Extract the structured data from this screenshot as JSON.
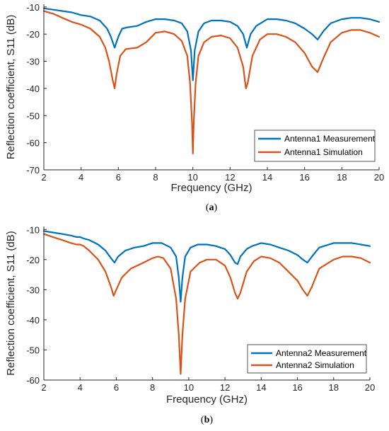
{
  "chart_data": [
    {
      "type": "line",
      "caption_open": "(",
      "caption_letter": "a",
      "caption_close": ")",
      "xlabel": "Frequency (GHz)",
      "ylabel": "Reflection coefficient, S11 (dB)",
      "xlim": [
        2,
        20
      ],
      "ylim": [
        -70,
        -9
      ],
      "xticks": [
        2,
        4,
        6,
        8,
        10,
        12,
        14,
        16,
        18,
        20
      ],
      "yticks": [
        -70,
        -60,
        -50,
        -40,
        -30,
        -20,
        -10
      ],
      "legend_position": "bottom-right",
      "series": [
        {
          "name": "Antenna1 Measurement",
          "color": "#0072BD",
          "x": [
            2,
            2.5,
            3,
            3.5,
            4,
            4.5,
            5,
            5.4,
            5.6,
            5.8,
            6.0,
            6.2,
            6.5,
            7,
            7.5,
            8,
            8.5,
            9,
            9.4,
            9.7,
            9.9,
            10.0,
            10.1,
            10.3,
            10.6,
            11,
            11.5,
            12,
            12.4,
            12.7,
            12.9,
            13.1,
            13.4,
            14,
            14.5,
            15,
            15.5,
            16,
            16.4,
            16.7,
            17.0,
            17.4,
            18,
            18.5,
            19,
            19.5,
            20
          ],
          "y": [
            -10.5,
            -11,
            -11.5,
            -12,
            -13,
            -13.5,
            -15,
            -18,
            -21,
            -25,
            -21,
            -18,
            -17.5,
            -17,
            -15.5,
            -14.5,
            -14.5,
            -15,
            -16,
            -19,
            -26,
            -37,
            -26,
            -19,
            -16,
            -15,
            -15,
            -15.5,
            -17,
            -20,
            -25,
            -20,
            -17,
            -14.5,
            -14.5,
            -15,
            -16,
            -18,
            -20,
            -22,
            -19,
            -16,
            -14.5,
            -14,
            -14,
            -14.5,
            -15.5
          ]
        },
        {
          "name": "Antenna1 Simulation",
          "color": "#D95319",
          "x": [
            2,
            2.5,
            3,
            3.5,
            4,
            4.5,
            5,
            5.3,
            5.5,
            5.7,
            5.8,
            5.9,
            6.1,
            6.4,
            7,
            7.5,
            8,
            8.5,
            9,
            9.4,
            9.7,
            9.85,
            9.95,
            10.0,
            10.05,
            10.15,
            10.3,
            10.6,
            11,
            11.5,
            12,
            12.4,
            12.7,
            12.85,
            12.95,
            13.2,
            13.6,
            14,
            14.5,
            15,
            15.5,
            16,
            16.4,
            16.7,
            17.0,
            17.4,
            18,
            18.5,
            19,
            19.5,
            20
          ],
          "y": [
            -11.5,
            -12.5,
            -14,
            -15.5,
            -16.5,
            -18,
            -21,
            -25,
            -30,
            -37,
            -40,
            -35,
            -28,
            -25.5,
            -25,
            -23,
            -19.5,
            -19,
            -20,
            -22.5,
            -28,
            -38,
            -52,
            -64,
            -52,
            -38,
            -28,
            -23,
            -21,
            -20.5,
            -21.5,
            -25,
            -32,
            -40,
            -38,
            -28,
            -22,
            -20,
            -20,
            -21,
            -23,
            -27,
            -32,
            -34,
            -29,
            -23,
            -19.5,
            -18.5,
            -18.5,
            -19.5,
            -21
          ]
        }
      ]
    },
    {
      "type": "line",
      "caption_open": "(",
      "caption_letter": "b",
      "caption_close": ")",
      "xlabel": "Frequency (GHz)",
      "ylabel": "Reflection coefficient, S11 (dB)",
      "xlim": [
        2,
        20
      ],
      "ylim": [
        -60,
        -9
      ],
      "xticks": [
        2,
        4,
        6,
        8,
        10,
        12,
        14,
        16,
        18,
        20
      ],
      "yticks": [
        -60,
        -50,
        -40,
        -30,
        -20,
        -10
      ],
      "legend_position": "bottom-right",
      "series": [
        {
          "name": "Antenna2 Measurement",
          "color": "#0072BD",
          "x": [
            2,
            2.5,
            3,
            3.5,
            3.8,
            4.0,
            4.2,
            4.5,
            5,
            5.4,
            5.7,
            5.9,
            6.1,
            6.5,
            7,
            7.5,
            8,
            8.5,
            9,
            9.3,
            9.45,
            9.55,
            9.65,
            9.8,
            10.1,
            10.5,
            11,
            11.5,
            12,
            12.3,
            12.55,
            12.7,
            12.85,
            13.2,
            13.5,
            14,
            14.5,
            15,
            15.5,
            16,
            16.3,
            16.55,
            16.8,
            17.2,
            18,
            18.5,
            19,
            19.5,
            20
          ],
          "y": [
            -10.5,
            -11,
            -11.5,
            -12,
            -12.5,
            -12.5,
            -13,
            -13.5,
            -15,
            -17,
            -19.5,
            -21,
            -19,
            -17,
            -16,
            -15.5,
            -14.5,
            -14.5,
            -16,
            -19,
            -26,
            -34,
            -26,
            -19,
            -16,
            -15,
            -15,
            -15.5,
            -16.5,
            -18.5,
            -21,
            -21.5,
            -19,
            -16.5,
            -15.5,
            -14.5,
            -15,
            -16,
            -17,
            -18.5,
            -20,
            -21,
            -19,
            -16,
            -14.5,
            -14.5,
            -14.5,
            -15,
            -15.5
          ]
        },
        {
          "name": "Antenna2 Simulation",
          "color": "#D95319",
          "x": [
            2,
            2.5,
            3,
            3.5,
            3.8,
            4.0,
            4.2,
            4.5,
            5,
            5.4,
            5.7,
            5.85,
            6.0,
            6.3,
            6.8,
            7.5,
            8,
            8.3,
            8.6,
            9.0,
            9.3,
            9.45,
            9.55,
            9.65,
            9.8,
            10.1,
            10.6,
            11,
            11.5,
            12,
            12.3,
            12.55,
            12.7,
            12.85,
            13.2,
            13.6,
            14,
            14.5,
            15,
            15.5,
            16,
            16.3,
            16.55,
            16.8,
            17.2,
            18,
            18.5,
            19,
            19.5,
            20
          ],
          "y": [
            -11.5,
            -12.5,
            -13.5,
            -14.5,
            -15,
            -15,
            -15.5,
            -17,
            -20,
            -24,
            -29,
            -32,
            -30,
            -26,
            -23,
            -21,
            -19.5,
            -19,
            -19.5,
            -23,
            -33,
            -45,
            -58,
            -45,
            -33,
            -24,
            -21,
            -20,
            -20,
            -22,
            -26,
            -31,
            -33,
            -31,
            -24,
            -20.5,
            -19,
            -19.5,
            -21,
            -24,
            -27,
            -30,
            -32,
            -29,
            -23,
            -20,
            -19,
            -19,
            -19.5,
            -21
          ]
        }
      ]
    }
  ]
}
